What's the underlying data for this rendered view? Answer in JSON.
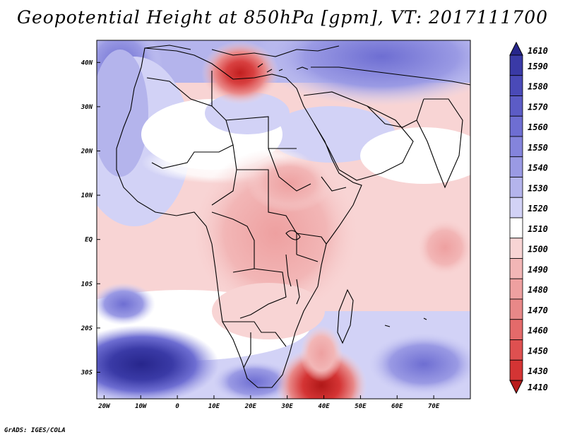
{
  "title": "Geopotential Height at 850hPa [gpm], VT: 2017111700",
  "credit": "GrADS: IGES/COLA",
  "lat_labels": [
    "40N",
    "30N",
    "20N",
    "10N",
    "EQ",
    "10S",
    "20S",
    "30S"
  ],
  "lat_values": [
    40,
    30,
    20,
    10,
    0,
    -10,
    -20,
    -30
  ],
  "lon_labels": [
    "20W",
    "10W",
    "0",
    "10E",
    "20E",
    "30E",
    "40E",
    "50E",
    "60E",
    "70E"
  ],
  "lon_values": [
    -20,
    -10,
    0,
    10,
    20,
    30,
    40,
    50,
    60,
    70
  ],
  "map_extent": {
    "lon_min": -22,
    "lon_max": 80,
    "lat_min": -36,
    "lat_max": 45
  },
  "colorbar": {
    "levels": [
      "1610",
      "1590",
      "1580",
      "1570",
      "1560",
      "1550",
      "1540",
      "1530",
      "1520",
      "1510",
      "1500",
      "1490",
      "1480",
      "1470",
      "1460",
      "1450",
      "1430",
      "1410"
    ],
    "colors": [
      "#27268c",
      "#3a3aa6",
      "#4a4ab8",
      "#5c5cc6",
      "#6e6ed2",
      "#8484dc",
      "#9a9ae4",
      "#b4b4ec",
      "#d2d2f6",
      "#ffffff",
      "#f8d4d4",
      "#f2b6b6",
      "#eea0a0",
      "#e88888",
      "#e46a6a",
      "#de5050",
      "#d43434",
      "#b81c1c"
    ]
  },
  "features": {
    "low_north": {
      "label": "low near Mediterranean",
      "lon": 18,
      "lat": 37
    },
    "low_south": {
      "label": "low south of Africa",
      "lon": 38,
      "lat": -35
    },
    "high_southwest": {
      "label": "high over South Atlantic",
      "lon": -12,
      "lat": -28
    }
  }
}
